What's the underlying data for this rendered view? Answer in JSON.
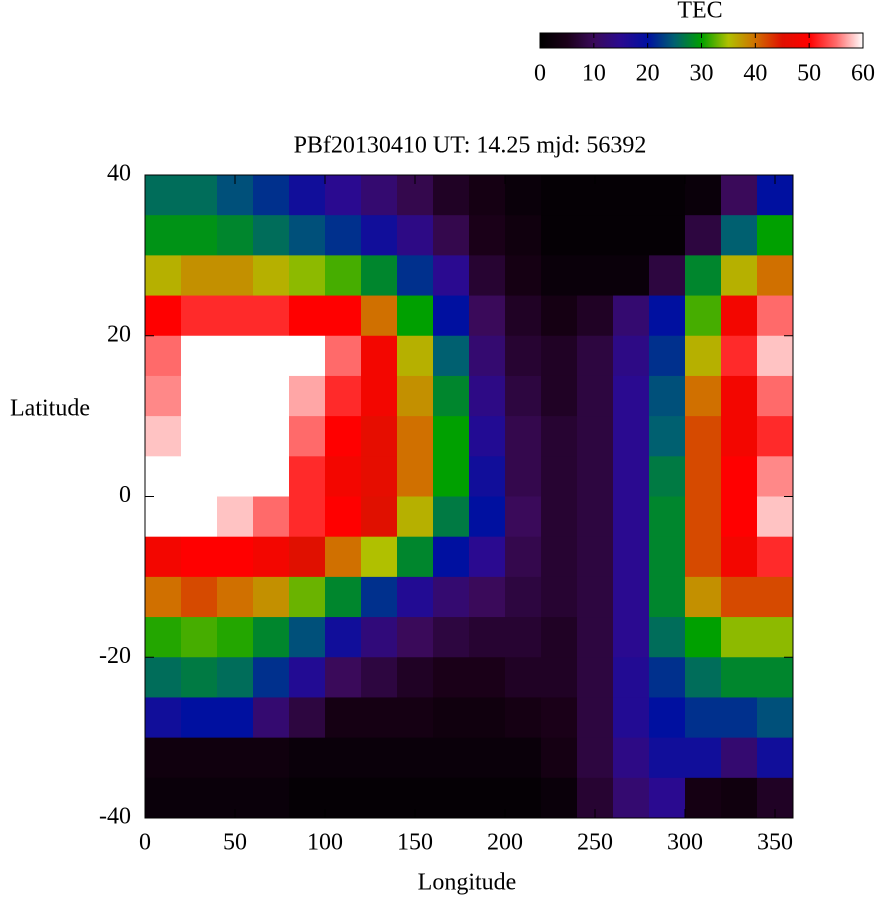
{
  "chart_data": {
    "type": "heatmap",
    "title": "PBf20130410  UT: 14.25  mjd: 56392",
    "x_label": "Longitude",
    "y_label": "Latitude",
    "colorbar_label": "TEC",
    "x": [
      10,
      30,
      50,
      70,
      90,
      110,
      130,
      150,
      170,
      190,
      210,
      230,
      250,
      270,
      290,
      310,
      330,
      350
    ],
    "y": [
      37.5,
      32.5,
      27.5,
      22.5,
      17.5,
      12.5,
      7.5,
      2.5,
      -2.5,
      -7.5,
      -12.5,
      -17.5,
      -22.5,
      -27.5,
      -32.5,
      -37.5
    ],
    "values": [
      [
        26,
        29,
        36,
        50,
        55,
        56,
        58,
        60,
        60,
        48,
        40,
        31,
        26,
        18,
        3,
        2
      ],
      [
        26,
        29,
        38,
        52,
        60,
        60,
        60,
        60,
        60,
        50,
        42,
        32,
        27,
        20,
        3,
        2
      ],
      [
        24,
        28,
        38,
        52,
        60,
        60,
        60,
        60,
        58,
        50,
        40,
        31,
        26,
        20,
        3,
        2
      ],
      [
        22,
        26,
        36,
        52,
        60,
        60,
        60,
        60,
        55,
        48,
        38,
        28,
        22,
        12,
        3,
        2
      ],
      [
        18,
        24,
        34,
        50,
        60,
        57,
        55,
        52,
        52,
        45,
        33,
        24,
        16,
        8,
        2,
        1
      ],
      [
        15,
        22,
        32,
        50,
        55,
        52,
        50,
        48,
        50,
        40,
        28,
        18,
        10,
        4,
        2,
        1
      ],
      [
        12,
        18,
        28,
        40,
        48,
        48,
        46,
        46,
        45,
        35,
        22,
        13,
        8,
        4,
        2,
        1
      ],
      [
        9,
        14,
        22,
        30,
        36,
        38,
        40,
        40,
        36,
        28,
        16,
        10,
        6,
        4,
        2,
        1
      ],
      [
        6,
        9,
        15,
        20,
        25,
        28,
        30,
        30,
        27,
        20,
        12,
        8,
        5,
        3,
        2,
        1
      ],
      [
        4,
        5,
        7,
        10,
        12,
        14,
        16,
        18,
        20,
        15,
        10,
        7,
        5,
        3,
        2,
        1
      ],
      [
        2,
        3,
        4,
        6,
        7,
        8,
        9,
        9,
        10,
        9,
        8,
        7,
        6,
        4,
        2,
        1
      ],
      [
        1,
        1,
        2,
        4,
        6,
        6,
        7,
        7,
        7,
        7,
        7,
        6,
        6,
        5,
        4,
        2
      ],
      [
        1,
        1,
        2,
        6,
        8,
        8,
        8,
        8,
        8,
        8,
        8,
        8,
        8,
        8,
        8,
        7
      ],
      [
        1,
        1,
        2,
        12,
        14,
        15,
        15,
        15,
        15,
        15,
        15,
        15,
        16,
        16,
        14,
        12
      ],
      [
        1,
        1,
        8,
        20,
        22,
        24,
        25,
        27,
        28,
        28,
        28,
        26,
        22,
        20,
        18,
        15
      ],
      [
        2,
        8,
        28,
        32,
        36,
        40,
        42,
        42,
        42,
        42,
        38,
        30,
        26,
        22,
        18,
        4
      ],
      [
        10,
        25,
        36,
        48,
        52,
        48,
        48,
        50,
        50,
        48,
        42,
        34,
        28,
        22,
        12,
        3
      ],
      [
        20,
        30,
        40,
        55,
        58,
        55,
        52,
        56,
        58,
        52,
        42,
        34,
        28,
        24,
        18,
        6
      ]
    ],
    "xlim": [
      0,
      360
    ],
    "ylim": [
      -40,
      40
    ],
    "xticks": [
      0,
      50,
      100,
      150,
      200,
      250,
      300,
      350
    ],
    "yticks": [
      -40,
      -20,
      0,
      20,
      40
    ],
    "zlim": [
      0,
      60
    ],
    "zticks": [
      0,
      10,
      20,
      30,
      40,
      50,
      60
    ],
    "colorscale": [
      {
        "value": 0,
        "color": "#000000"
      },
      {
        "value": 5,
        "color": "#1a0018"
      },
      {
        "value": 10,
        "color": "#3a0a5a"
      },
      {
        "value": 15,
        "color": "#2a0a90"
      },
      {
        "value": 20,
        "color": "#0010a0"
      },
      {
        "value": 25,
        "color": "#006070"
      },
      {
        "value": 30,
        "color": "#00a000"
      },
      {
        "value": 35,
        "color": "#b0c000"
      },
      {
        "value": 40,
        "color": "#d07000"
      },
      {
        "value": 45,
        "color": "#e01000"
      },
      {
        "value": 50,
        "color": "#ff0000"
      },
      {
        "value": 55,
        "color": "#ff6a6a"
      },
      {
        "value": 60,
        "color": "#ffffff"
      }
    ]
  }
}
